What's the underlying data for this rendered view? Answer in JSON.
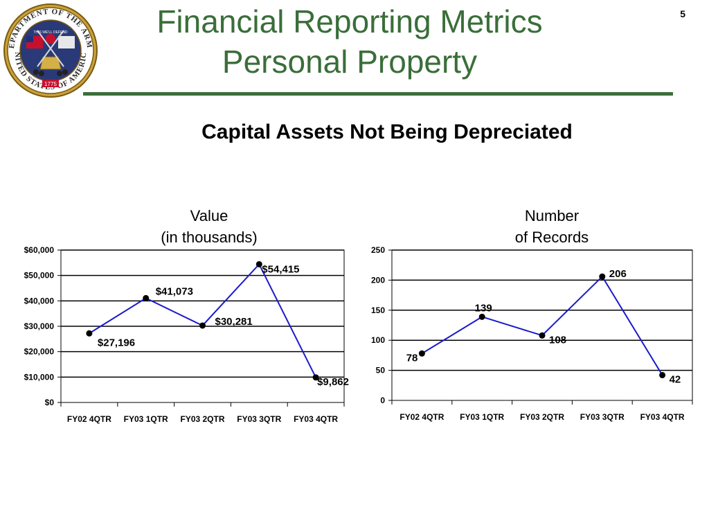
{
  "slide": {
    "title_line1": "Financial Reporting Metrics",
    "title_line2": "Personal Property",
    "page_number": "5",
    "subtitle": "Capital Assets Not Being Depreciated",
    "accent_color": "#3a6e3a"
  },
  "seal": {
    "icon": "army-seal-icon",
    "top_text": "DEPARTMENT OF THE ARMY",
    "bottom_text": "UNITED STATES OF AMERICA",
    "year": "1775",
    "banner": "THIS WE'LL DEFEND"
  },
  "chart_data": [
    {
      "type": "line",
      "title_line1": "Value",
      "title_line2": "(in thousands)",
      "categories": [
        "FY02 4QTR",
        "FY03 1QTR",
        "FY03 2QTR",
        "FY03 3QTR",
        "FY03 4QTR"
      ],
      "values": [
        27196,
        41073,
        30281,
        54415,
        9862
      ],
      "data_labels": [
        "$27,196",
        "$41,073",
        "$30,281",
        "$54,415",
        "$9,862"
      ],
      "ylim": [
        0,
        60000
      ],
      "yticks": [
        0,
        10000,
        20000,
        30000,
        40000,
        50000,
        60000
      ],
      "ytick_labels": [
        "$0",
        "$10,000",
        "$20,000",
        "$30,000",
        "$40,000",
        "$50,000",
        "$60,000"
      ],
      "line_color": "#1a1acc",
      "grid": true
    },
    {
      "type": "line",
      "title_line1": "Number",
      "title_line2": "of Records",
      "categories": [
        "FY02 4QTR",
        "FY03 1QTR",
        "FY03 2QTR",
        "FY03 3QTR",
        "FY03 4QTR"
      ],
      "values": [
        78,
        139,
        108,
        206,
        42
      ],
      "data_labels": [
        "78",
        "139",
        "108",
        "206",
        "42"
      ],
      "ylim": [
        0,
        250
      ],
      "yticks": [
        0,
        50,
        100,
        150,
        200,
        250
      ],
      "ytick_labels": [
        "0",
        "50",
        "100",
        "150",
        "200",
        "250"
      ],
      "line_color": "#1a1acc",
      "grid": true
    }
  ]
}
